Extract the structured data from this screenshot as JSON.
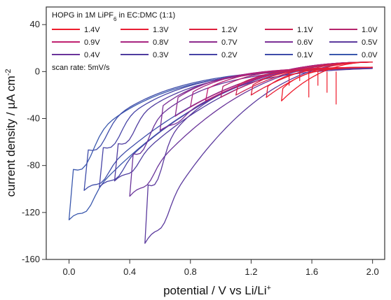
{
  "chart_data": {
    "type": "line",
    "title": "HOPG in 1M LiPF6 in EC:DMC (1:1)",
    "annotation": "scan rate: 5mV/s",
    "xlabel": "potential / V vs Li/Li+",
    "ylabel": "current density / µA cm-2",
    "xlim": [
      -0.15,
      2.08
    ],
    "ylim": [
      -160,
      55
    ],
    "xticks": [
      0.0,
      0.4,
      0.8,
      1.2,
      1.6,
      2.0
    ],
    "xtick_labels": [
      "0.0",
      "0.4",
      "0.8",
      "1.2",
      "1.6",
      "2.0"
    ],
    "yticks": [
      40,
      0,
      -40,
      -80,
      -120,
      -160
    ],
    "ytick_labels": [
      "40",
      "0",
      "-40",
      "-80",
      "-120",
      "-160"
    ],
    "legend_placement": "top-left",
    "grid": false,
    "series": [
      {
        "name": "1.4V",
        "vertex": 1.4,
        "color": "#ee1c2c",
        "min_current": -25
      },
      {
        "name": "1.3V",
        "vertex": 1.3,
        "color": "#e81d33",
        "min_current": -22
      },
      {
        "name": "1.2V",
        "vertex": 1.2,
        "color": "#de1f3c",
        "min_current": -20
      },
      {
        "name": "1.1V",
        "vertex": 1.1,
        "color": "#cc2050",
        "min_current": -20
      },
      {
        "name": "1.0V",
        "vertex": 1.0,
        "color": "#b5246c",
        "min_current": -22
      },
      {
        "name": "0.9V",
        "vertex": 0.9,
        "color": "#c02070",
        "min_current": -25
      },
      {
        "name": "0.8V",
        "vertex": 0.8,
        "color": "#a82480",
        "min_current": -30
      },
      {
        "name": "0.7V",
        "vertex": 0.7,
        "color": "#8d2a8d",
        "min_current": -38
      },
      {
        "name": "0.6V",
        "vertex": 0.6,
        "color": "#7b2f96",
        "min_current": -50
      },
      {
        "name": "0.5V",
        "vertex": 0.5,
        "color": "#5b3a9d",
        "min_current": -146
      },
      {
        "name": "0.4V",
        "vertex": 0.4,
        "color": "#6a349a",
        "min_current": -106
      },
      {
        "name": "0.3V",
        "vertex": 0.3,
        "color": "#4f3c9f",
        "min_current": -93
      },
      {
        "name": "0.2V",
        "vertex": 0.2,
        "color": "#4644a6",
        "min_current": -98
      },
      {
        "name": "0.1V",
        "vertex": 0.1,
        "color": "#3e4ca9",
        "min_current": -101
      },
      {
        "name": "0.0V",
        "vertex": 0.0,
        "color": "#3a58ad",
        "min_current": -126
      }
    ],
    "upper_vertex": 2.0
  }
}
